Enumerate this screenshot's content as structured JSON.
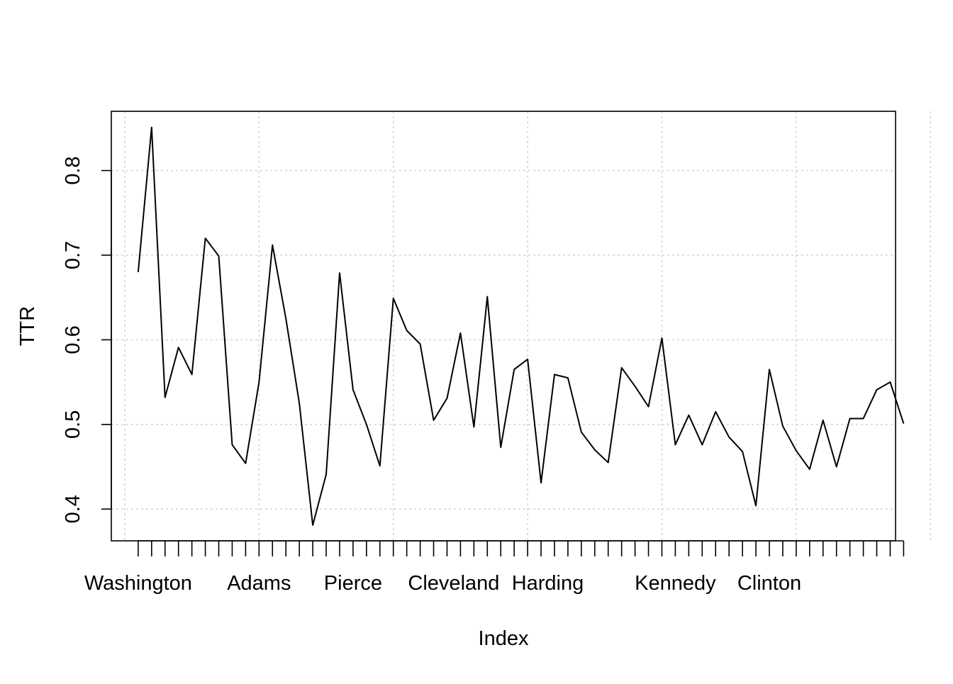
{
  "chart_data": {
    "type": "line",
    "title": "",
    "xlabel": "Index",
    "ylabel": "TTR",
    "xlim": [
      0.0,
      58.4
    ],
    "ylim": [
      0.3625,
      0.87
    ],
    "grid": true,
    "grid_x": [
      1,
      11,
      21,
      31,
      41,
      51,
      61
    ],
    "y_ticks": [
      0.4,
      0.5,
      0.6,
      0.7,
      0.8
    ],
    "y_tick_labels": [
      "0.4",
      "0.5",
      "0.6",
      "0.7",
      "0.8"
    ],
    "x_ticks": [
      2,
      3,
      4,
      5,
      6,
      7,
      8,
      9,
      10,
      11,
      12,
      13,
      14,
      15,
      16,
      17,
      18,
      19,
      20,
      21,
      22,
      23,
      24,
      25,
      26,
      27,
      28,
      29,
      30,
      31,
      32,
      33,
      34,
      35,
      36,
      37,
      38,
      39,
      40,
      41,
      42,
      43,
      44,
      45,
      46,
      47,
      48,
      49,
      50,
      51,
      52,
      53,
      54,
      55,
      56,
      57,
      58,
      59
    ],
    "x_tick_labels": [
      {
        "x": 2.0,
        "label": "Washington"
      },
      {
        "x": 11.0,
        "label": "Adams"
      },
      {
        "x": 18.0,
        "label": "Pierce"
      },
      {
        "x": 25.5,
        "label": "Cleveland"
      },
      {
        "x": 32.5,
        "label": "Harding"
      },
      {
        "x": 42.0,
        "label": "Kennedy"
      },
      {
        "x": 49.0,
        "label": "Clinton"
      }
    ],
    "series": [
      {
        "color": "#000000",
        "x": [
          2,
          3,
          4,
          5,
          6,
          7,
          8,
          9,
          10,
          11,
          12,
          13,
          14,
          15,
          16,
          17,
          18,
          19,
          20,
          21,
          22,
          23,
          24,
          25,
          26,
          27,
          28,
          29,
          30,
          31,
          32,
          33,
          34,
          35,
          36,
          37,
          38,
          39,
          40,
          41,
          42,
          43,
          44,
          45,
          46,
          47,
          48,
          49,
          50,
          51,
          52,
          53,
          54,
          55,
          56,
          57,
          58,
          59
        ],
        "values": [
          0.68,
          0.851,
          0.532,
          0.591,
          0.559,
          0.72,
          0.699,
          0.476,
          0.454,
          0.55,
          0.712,
          0.625,
          0.525,
          0.381,
          0.441,
          0.679,
          0.541,
          0.5,
          0.451,
          0.649,
          0.611,
          0.595,
          0.505,
          0.531,
          0.608,
          0.497,
          0.651,
          0.473,
          0.565,
          0.577,
          0.431,
          0.559,
          0.555,
          0.491,
          0.47,
          0.455,
          0.567,
          0.545,
          0.521,
          0.602,
          0.476,
          0.511,
          0.476,
          0.515,
          0.485,
          0.468,
          0.404,
          0.565,
          0.498,
          0.469,
          0.447,
          0.505,
          0.45,
          0.507,
          0.507,
          0.541,
          0.55,
          0.501
        ]
      }
    ]
  }
}
